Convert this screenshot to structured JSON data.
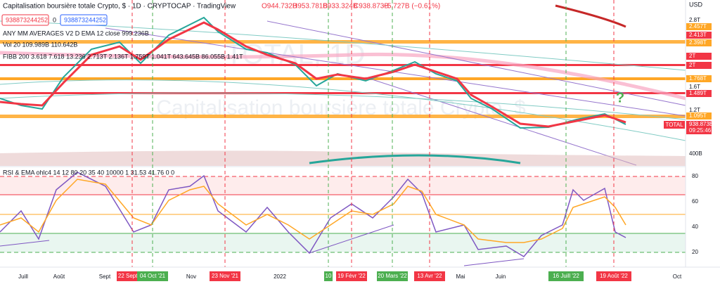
{
  "header": {
    "title": "Capitalisation boursière totale Crypto, $ · 1D · CRYPTOCAP · TradingView",
    "ohlc": [
      "O944.732B",
      "H953.781B",
      "B933.324B",
      "C938.873B",
      "−5.727B (−0.61%)"
    ],
    "inputs": [
      "938873244252",
      "0",
      "938873244252"
    ]
  },
  "indicators": [
    "ANY MM AVERAGES V2 D EMA 12 close  999.236B",
    "Vol 20  109.989B  110.642B",
    "FIBB 200 3.618 7.618 13.236  2.713T  2.136T  1.759T  1.041T  643.645B  86.055B  1.41T"
  ],
  "watermark": {
    "symbol": "TOTAL, 1D",
    "name": "Capitalisation boursière totale Crypto, $"
  },
  "price_axis": {
    "unit": "USD",
    "labels": [
      "2.8T",
      "2.457T",
      "2.413T",
      "2.398T",
      "2T",
      "2T",
      "1.768T",
      "1.6T",
      "1.489T",
      "1.2T",
      "1.095T",
      "938.873B",
      "09:25:46",
      "400B"
    ],
    "symbol": "TOTAL"
  },
  "rsi": {
    "legend": "RSI & EMA ohlc4 14 12 80 20 35 40 10000 1  31.53  41.76  0  0",
    "ticks": [
      "80",
      "60",
      "40",
      "20"
    ]
  },
  "time_axis": {
    "labels": [
      "Juill",
      "Août",
      "Sept",
      "Nov",
      "2022",
      "Mai",
      "Juin",
      "Oct"
    ],
    "markers": [
      "22 Sept '21",
      "04 Oct '21",
      "23 Nov '21",
      "10",
      "19 Févr '22",
      "20 Mars '22",
      "13 Avr '22",
      "16 Juill '22",
      "19 Août '22"
    ]
  },
  "annotation": "?"
}
